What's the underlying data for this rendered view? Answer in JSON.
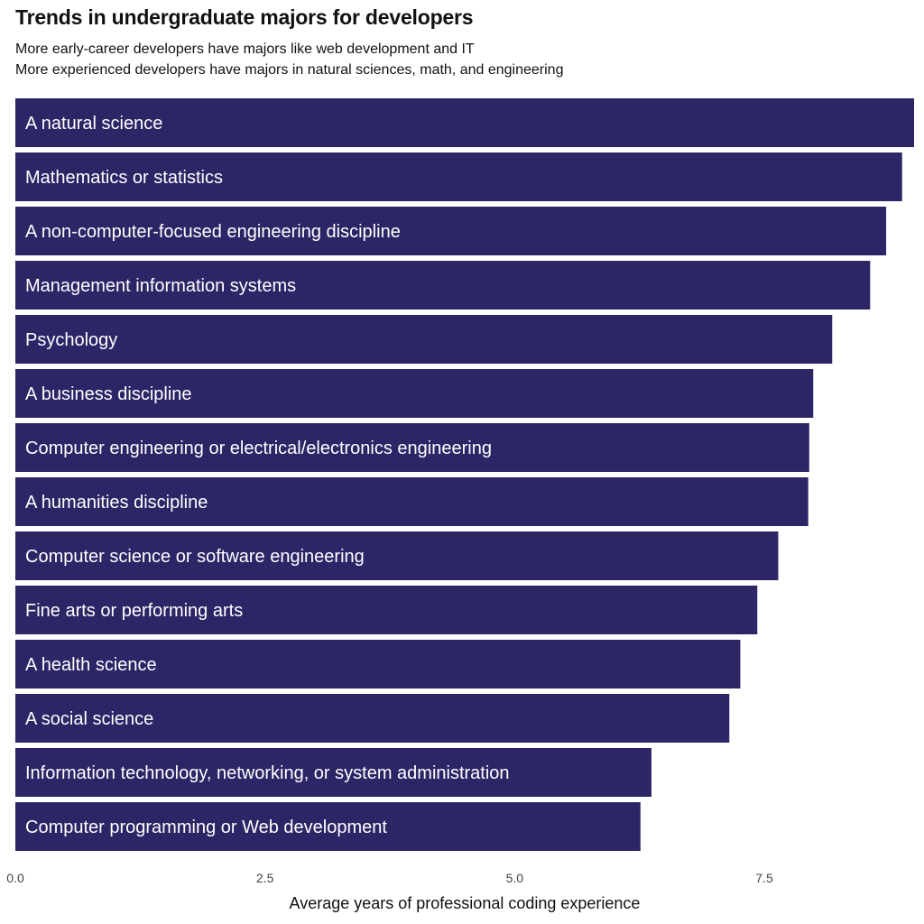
{
  "chart_data": {
    "type": "bar",
    "orientation": "horizontal",
    "title": "Trends in undergraduate majors for developers",
    "subtitles": [
      "More early-career developers have majors like web development and IT",
      "More experienced developers have majors in natural sciences, math, and engineering"
    ],
    "xlabel": "Average years of professional coding experience",
    "ylabel": "",
    "xlim": [
      0,
      9.0
    ],
    "xticks": [
      {
        "value": 0.0,
        "label": "0.0"
      },
      {
        "value": 2.5,
        "label": "2.5"
      },
      {
        "value": 5.0,
        "label": "5.0"
      },
      {
        "value": 7.5,
        "label": "7.5"
      }
    ],
    "grid": false,
    "bar_color": "#2c2566",
    "label_color": "#ffffff",
    "categories": [
      "A natural science",
      "Mathematics or statistics",
      "A non-computer-focused engineering discipline",
      "Management information systems",
      "Psychology",
      "A business discipline",
      "Computer engineering or electrical/electronics engineering",
      "A humanities discipline",
      "Computer science or software engineering",
      "Fine arts or performing arts",
      "A health science",
      "A social science",
      "Information technology, networking, or system administration",
      "Computer programming or Web development"
    ],
    "values": [
      9.0,
      8.88,
      8.72,
      8.56,
      8.18,
      7.99,
      7.95,
      7.94,
      7.64,
      7.43,
      7.26,
      7.15,
      6.37,
      6.26
    ]
  }
}
